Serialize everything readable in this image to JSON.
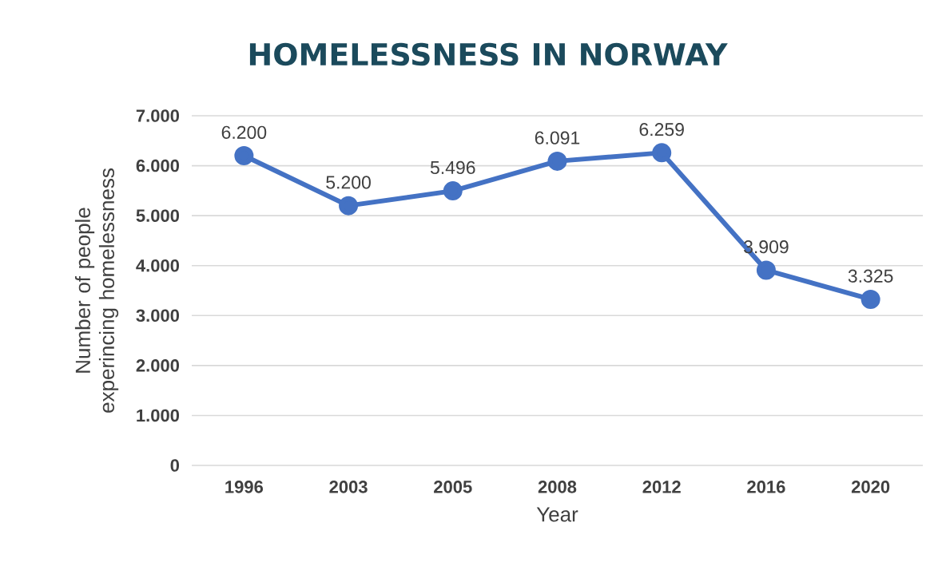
{
  "chart_data": {
    "type": "line",
    "title": "HOMELESSNESS IN NORWAY",
    "xlabel": "Year",
    "ylabel": "Number of people experincing homelessness",
    "categories": [
      "1996",
      "2003",
      "2005",
      "2008",
      "2012",
      "2016",
      "2020"
    ],
    "series": [
      {
        "color": "#4472c4",
        "values": [
          6200,
          5200,
          5496,
          6091,
          6259,
          3909,
          3325
        ],
        "value_labels": [
          "6.200",
          "5.200",
          "5.496",
          "6.091",
          "6.259",
          "3.909",
          "3.325"
        ]
      }
    ],
    "ylim": [
      0,
      7000
    ],
    "yticks": [
      0,
      {
        "value": 1000,
        "label": "1.000"
      },
      {
        "value": 2000,
        "label": "2.000"
      },
      {
        "value": 3000,
        "label": "3.000"
      },
      {
        "value": 4000,
        "label": "4.000"
      },
      {
        "value": 5000,
        "label": "5.000"
      },
      {
        "value": 6000,
        "label": "6.000"
      },
      {
        "value": 7000,
        "label": "7.000"
      }
    ],
    "grid": "y",
    "marker": "circle",
    "line_style": "solid"
  }
}
